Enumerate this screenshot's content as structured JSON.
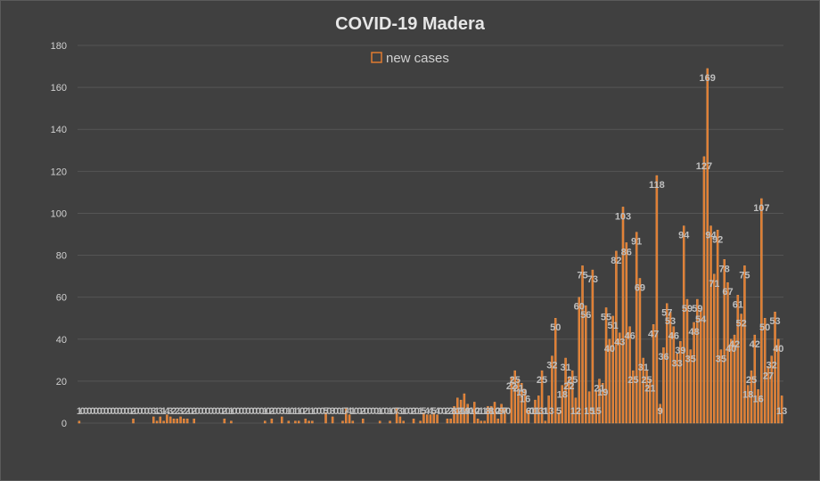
{
  "colors": {
    "background": "#404040",
    "bar": "#e07b30",
    "bar_edge": "#f0a25a",
    "text": "#d9d9d9",
    "grid": "#555555"
  },
  "chart_data": {
    "type": "bar",
    "title": "COVID-19 Madera",
    "xlabel": "",
    "ylabel": "",
    "ylim": [
      0,
      180
    ],
    "yticks": [
      0,
      20,
      40,
      60,
      80,
      100,
      120,
      140,
      160,
      180
    ],
    "grid": true,
    "legend_position": "top-center",
    "series": [
      {
        "name": "new cases",
        "values": [
          1,
          0,
          0,
          0,
          0,
          0,
          0,
          0,
          0,
          0,
          0,
          0,
          0,
          0,
          0,
          0,
          2,
          0,
          0,
          0,
          0,
          0,
          3,
          1,
          3,
          1,
          4,
          3,
          2,
          2,
          3,
          2,
          2,
          0,
          2,
          0,
          0,
          0,
          0,
          0,
          0,
          0,
          0,
          2,
          0,
          1,
          0,
          0,
          0,
          0,
          0,
          0,
          0,
          0,
          0,
          1,
          0,
          2,
          0,
          0,
          3,
          0,
          1,
          0,
          1,
          1,
          0,
          2,
          1,
          1,
          0,
          0,
          0,
          5,
          0,
          3,
          0,
          0,
          1,
          7,
          4,
          1,
          0,
          0,
          2,
          0,
          0,
          0,
          0,
          1,
          0,
          0,
          1,
          0,
          7,
          3,
          1,
          0,
          0,
          2,
          0,
          1,
          5,
          4,
          4,
          5,
          4,
          0,
          0,
          2,
          2,
          8,
          12,
          11,
          14,
          9,
          0,
          10,
          2,
          1,
          1,
          8,
          8,
          10,
          2,
          9,
          7,
          0,
          22,
          25,
          21,
          19,
          16,
          6,
          0,
          11,
          13,
          25,
          1,
          13,
          32,
          50,
          5,
          18,
          31,
          22,
          25,
          12,
          60,
          75,
          56,
          15,
          73,
          15,
          21,
          19,
          55,
          40,
          51,
          82,
          43,
          103,
          86,
          46,
          25,
          91,
          69,
          31,
          25,
          21,
          47,
          118,
          9,
          36,
          57,
          53,
          46,
          33,
          39,
          94,
          59,
          35,
          48,
          59,
          54,
          127,
          169,
          94,
          71,
          92,
          35,
          78,
          67,
          40,
          42,
          61,
          52,
          75,
          18,
          25,
          42,
          16,
          107,
          50,
          27,
          32,
          53,
          40,
          13
        ]
      }
    ]
  }
}
